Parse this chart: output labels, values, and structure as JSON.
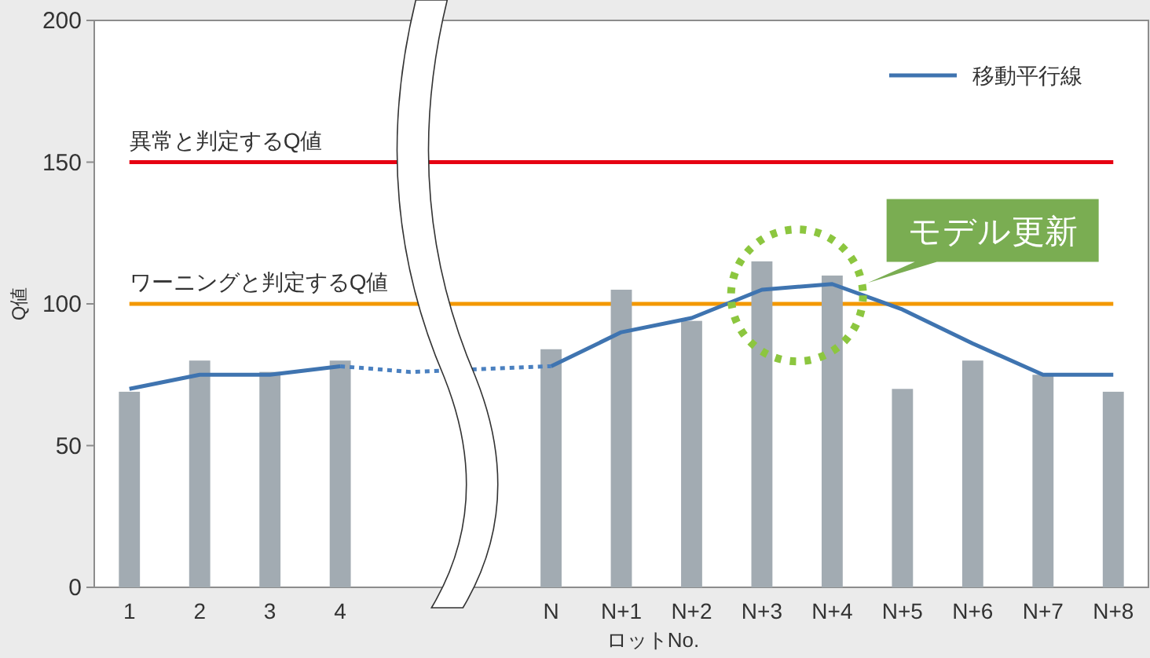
{
  "chart_data": {
    "type": "bar",
    "ylabel": "Q値",
    "xlabel": "ロットNo.",
    "legend": "top right",
    "ylim": [
      0,
      200
    ],
    "yticks": [
      0,
      50,
      100,
      150,
      200
    ],
    "categories": [
      "1",
      "2",
      "3",
      "4",
      null,
      null,
      "N",
      "N+1",
      "N+2",
      "N+3",
      "N+4",
      "N+5",
      "N+6",
      "N+7",
      "N+8"
    ],
    "series": [
      {
        "color": "#a2abb2",
        "values": [
          69,
          80,
          76,
          80,
          null,
          null,
          84,
          105,
          94,
          115,
          110,
          70,
          80,
          75,
          69
        ]
      },
      {
        "type": "line",
        "name": "移動平行線",
        "color": "#3f74b0",
        "line_style": "solid",
        "values": [
          70,
          75,
          75,
          78,
          null,
          null,
          78,
          90,
          95,
          105,
          107,
          98,
          86,
          75,
          75
        ]
      },
      {
        "type": "line",
        "color": "#4a80c0",
        "line_style": "dotted",
        "values": [
          null,
          null,
          null,
          78,
          76,
          77,
          78,
          null,
          null,
          null,
          null,
          null,
          null,
          null,
          null
        ]
      }
    ],
    "ref_lines": [
      {
        "axis": "y",
        "value": 150,
        "label": "異常と判定するQ値",
        "color": "#e60012"
      },
      {
        "axis": "y",
        "value": 100,
        "label": "ワーニングと判定するQ値",
        "color": "#f39800"
      }
    ],
    "annotations": [
      "モデル更新"
    ]
  }
}
